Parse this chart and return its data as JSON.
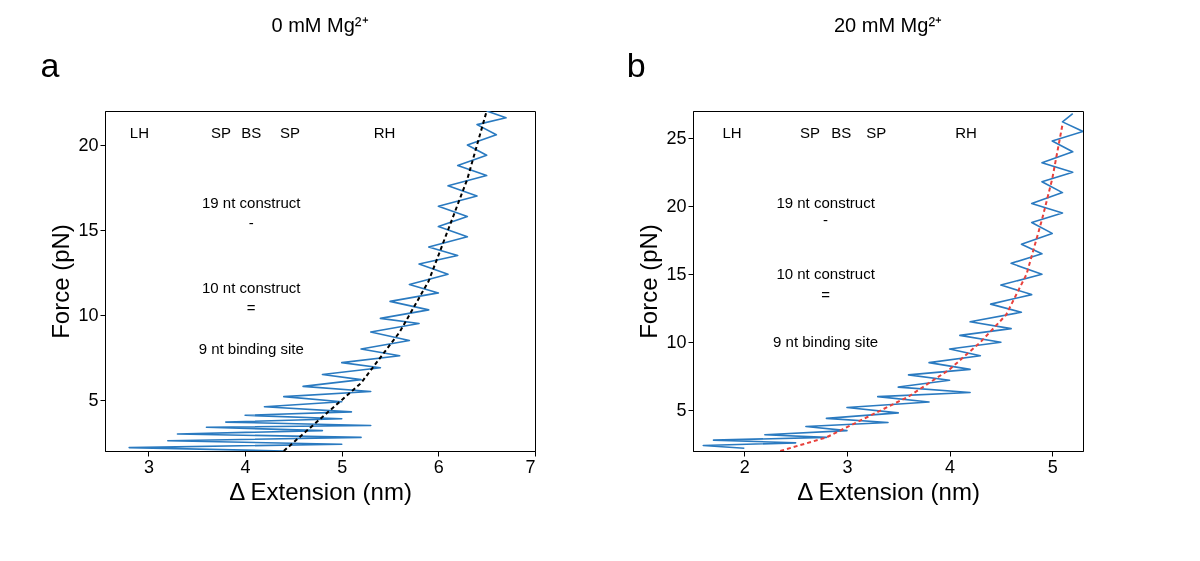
{
  "chart_data": [
    {
      "type": "line",
      "title": "0 mM Mg²⁺",
      "xlabel": "Δ Extension (nm)",
      "ylabel": "Force (pN)",
      "xlim": [
        2.55,
        7
      ],
      "ylim": [
        2,
        22
      ],
      "xticks": [
        3,
        4,
        5,
        6,
        7
      ],
      "yticks": [
        5,
        10,
        15,
        20
      ],
      "grid": false,
      "annotations": [
        "a",
        "LH",
        "SP",
        "BS",
        "SP",
        "RH",
        "19 nt construct",
        "-",
        "10 nt construct",
        "=",
        "9 nt binding site"
      ],
      "series": [
        {
          "color": "#2a7ac0",
          "line_style": "solid",
          "x": [
            4.4,
            2.8,
            5.0,
            3.2,
            5.2,
            3.3,
            4.8,
            3.6,
            5.3,
            3.8,
            5.0,
            4.0,
            5.1,
            4.2,
            5.0,
            4.4,
            5.3,
            4.6,
            5.2,
            4.8,
            5.4,
            5.0,
            5.6,
            5.2,
            5.7,
            5.3,
            5.8,
            5.4,
            5.9,
            5.5,
            6.0,
            5.7,
            6.1,
            5.8,
            6.2,
            5.9,
            6.3,
            6.0,
            6.3,
            6.0,
            6.4,
            6.1,
            6.5,
            6.2,
            6.5,
            6.3,
            6.6,
            6.4,
            6.7,
            6.5
          ],
          "values": [
            2.0,
            2.2,
            2.4,
            2.6,
            2.8,
            3.0,
            3.2,
            3.4,
            3.5,
            3.7,
            3.9,
            4.1,
            4.3,
            4.6,
            4.9,
            5.2,
            5.5,
            5.8,
            6.2,
            6.5,
            6.9,
            7.2,
            7.6,
            8.0,
            8.5,
            9.0,
            9.5,
            9.8,
            10.3,
            10.8,
            11.3,
            11.8,
            12.4,
            13.0,
            13.5,
            14.0,
            14.6,
            15.2,
            15.8,
            16.4,
            17.0,
            17.6,
            18.2,
            18.8,
            19.4,
            20.0,
            20.6,
            21.2,
            21.6,
            22.0
          ]
        },
        {
          "color": "#000000",
          "line_style": "dashed",
          "x": [
            4.4,
            4.8,
            5.2,
            5.6,
            5.9,
            6.1,
            6.3,
            6.5
          ],
          "values": [
            2,
            4,
            6,
            9,
            12,
            15,
            18,
            22
          ]
        }
      ]
    },
    {
      "type": "line",
      "title": "20 mM Mg²⁺",
      "xlabel": "Δ Extension (nm)",
      "ylabel": "Force (pN)",
      "xlim": [
        1.5,
        5.3
      ],
      "ylim": [
        2,
        27
      ],
      "xticks": [
        2,
        3,
        4,
        5
      ],
      "yticks": [
        5,
        10,
        15,
        20,
        25
      ],
      "grid": false,
      "annotations": [
        "b",
        "LH",
        "SP",
        "BS",
        "SP",
        "RH",
        "19 nt construct",
        "-",
        "10 nt construct",
        "=",
        "9 nt binding site"
      ],
      "series": [
        {
          "color": "#2a7ac0",
          "line_style": "solid",
          "x": [
            2.0,
            1.6,
            2.5,
            1.7,
            2.8,
            2.2,
            3.0,
            2.6,
            3.4,
            2.8,
            3.5,
            3.0,
            3.8,
            3.3,
            4.2,
            3.5,
            4.0,
            3.6,
            4.2,
            3.8,
            4.3,
            4.0,
            4.5,
            4.1,
            4.6,
            4.2,
            4.7,
            4.4,
            4.8,
            4.5,
            4.9,
            4.6,
            4.9,
            4.7,
            5.0,
            4.8,
            5.1,
            4.8,
            5.1,
            4.9,
            5.2,
            4.9,
            5.2,
            5.0,
            5.3,
            5.1,
            5.2
          ],
          "values": [
            2.2,
            2.4,
            2.6,
            2.8,
            3.0,
            3.2,
            3.5,
            3.8,
            4.1,
            4.4,
            4.8,
            5.2,
            5.6,
            6.0,
            6.3,
            6.7,
            7.2,
            7.6,
            8.0,
            8.5,
            9.0,
            9.5,
            10.0,
            10.5,
            11.0,
            11.5,
            12.2,
            12.8,
            13.5,
            14.2,
            15.0,
            15.8,
            16.5,
            17.2,
            18.0,
            18.8,
            19.5,
            20.2,
            21.0,
            21.8,
            22.5,
            23.2,
            24.0,
            24.8,
            25.5,
            26.2,
            26.8
          ]
        },
        {
          "color": "#e8413c",
          "line_style": "dashed",
          "x": [
            2.35,
            2.8,
            3.2,
            3.6,
            4.0,
            4.3,
            4.55,
            4.75,
            4.9,
            5.0,
            5.1
          ],
          "values": [
            2,
            3,
            4.5,
            6,
            8,
            10,
            12,
            15,
            19,
            22,
            26
          ]
        }
      ]
    }
  ]
}
